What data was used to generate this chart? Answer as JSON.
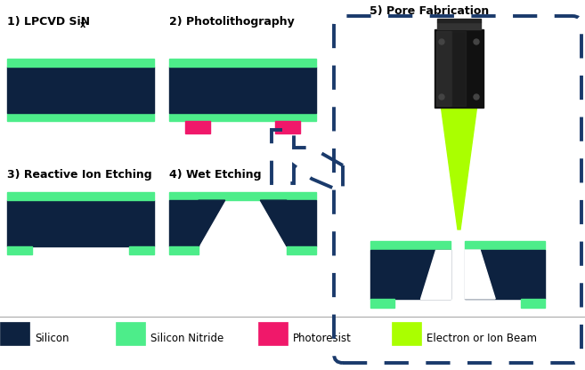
{
  "silicon_color": "#0d2240",
  "nitride_color": "#4ded8a",
  "photoresist_color": "#f0186a",
  "beam_color": "#aaff00",
  "dashed_border_color": "#1a3a6b",
  "bg_color": "#ffffff",
  "labels": {
    "step1": "1) LPCVD SiN",
    "step1_sub": "x",
    "step2": "2) Photolithography",
    "step3": "3) Reactive Ion Etching",
    "step4": "4) Wet Etching",
    "step5": "5) Pore Fabrication"
  },
  "legend": {
    "silicon": "Silicon",
    "nitride": "Silicon Nitride",
    "photoresist": "Photoresist",
    "beam": "Electron or Ion Beam"
  },
  "fig_w": 6.57,
  "fig_h": 4.16,
  "dpi": 100
}
